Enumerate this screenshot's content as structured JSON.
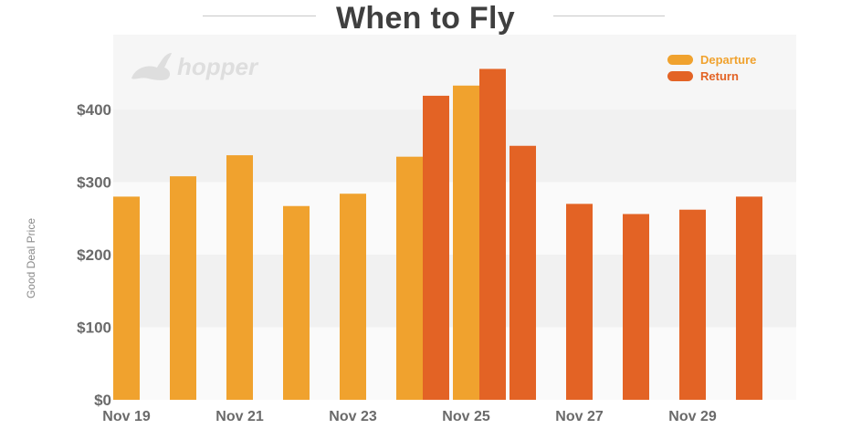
{
  "chart_data": {
    "type": "bar",
    "title": "When to Fly",
    "ylabel": "Good Deal Price",
    "xlabel": "",
    "ylim": [
      0,
      480
    ],
    "yticks": [
      0,
      100,
      200,
      300,
      400
    ],
    "ytick_labels": [
      "$0",
      "$100",
      "$200",
      "$300",
      "$400"
    ],
    "x_tick_labels": [
      "Nov 19",
      "Nov 21",
      "Nov 23",
      "Nov 25",
      "Nov 27",
      "Nov 29"
    ],
    "categories": [
      "Nov 19",
      "Nov 20",
      "Nov 21",
      "Nov 22",
      "Nov 23",
      "Nov 24",
      "Nov 25",
      "Nov 26",
      "Nov 27",
      "Nov 28",
      "Nov 29",
      "Nov 30"
    ],
    "series": [
      {
        "name": "Departure",
        "color": "#f0a22e",
        "values": [
          280,
          308,
          337,
          267,
          284,
          335,
          433,
          null,
          null,
          null,
          null,
          null
        ]
      },
      {
        "name": "Return",
        "color": "#e36325",
        "values": [
          null,
          null,
          null,
          null,
          null,
          419,
          456,
          350,
          270,
          256,
          262,
          280
        ]
      }
    ],
    "grid": true,
    "legend_position": "top-right"
  },
  "branding": {
    "logo_text": "hopper"
  }
}
